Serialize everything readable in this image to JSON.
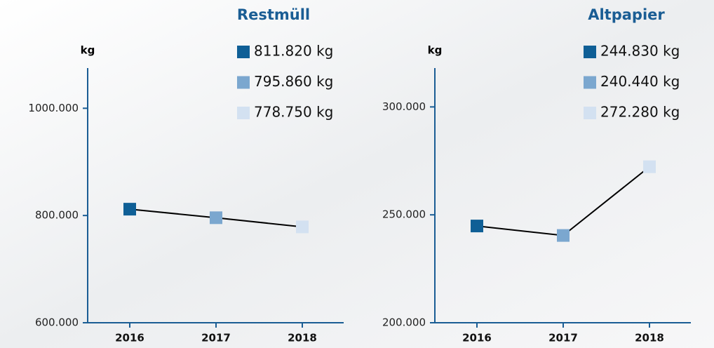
{
  "chart_data": [
    {
      "type": "line",
      "title": "Restmüll",
      "y_label": "kg",
      "categories": [
        "2016",
        "2017",
        "2018"
      ],
      "values": [
        811820,
        795860,
        778750
      ],
      "value_labels": [
        "811.820 kg",
        "795.860 kg",
        "778.750 kg"
      ],
      "colors": [
        "#0f5f96",
        "#7ba7cf",
        "#d3e1f1"
      ],
      "line_color": "#000000",
      "ylim": [
        600000,
        1075000
      ],
      "yticks": [
        {
          "value": 600000,
          "label": "600.000"
        },
        {
          "value": 800000,
          "label": "800.000"
        },
        {
          "value": 1000000,
          "label": "1000.000"
        }
      ]
    },
    {
      "type": "line",
      "title": "Altpapier",
      "y_label": "kg",
      "categories": [
        "2016",
        "2017",
        "2018"
      ],
      "values": [
        244830,
        240440,
        272280
      ],
      "value_labels": [
        "244.830 kg",
        "240.440 kg",
        "272.280 kg"
      ],
      "colors": [
        "#0f5f96",
        "#7ba7cf",
        "#d3e1f1"
      ],
      "line_color": "#000000",
      "ylim": [
        200000,
        318000
      ],
      "yticks": [
        {
          "value": 200000,
          "label": "200.000"
        },
        {
          "value": 250000,
          "label": "250.000"
        },
        {
          "value": 300000,
          "label": "300.000"
        }
      ]
    }
  ]
}
